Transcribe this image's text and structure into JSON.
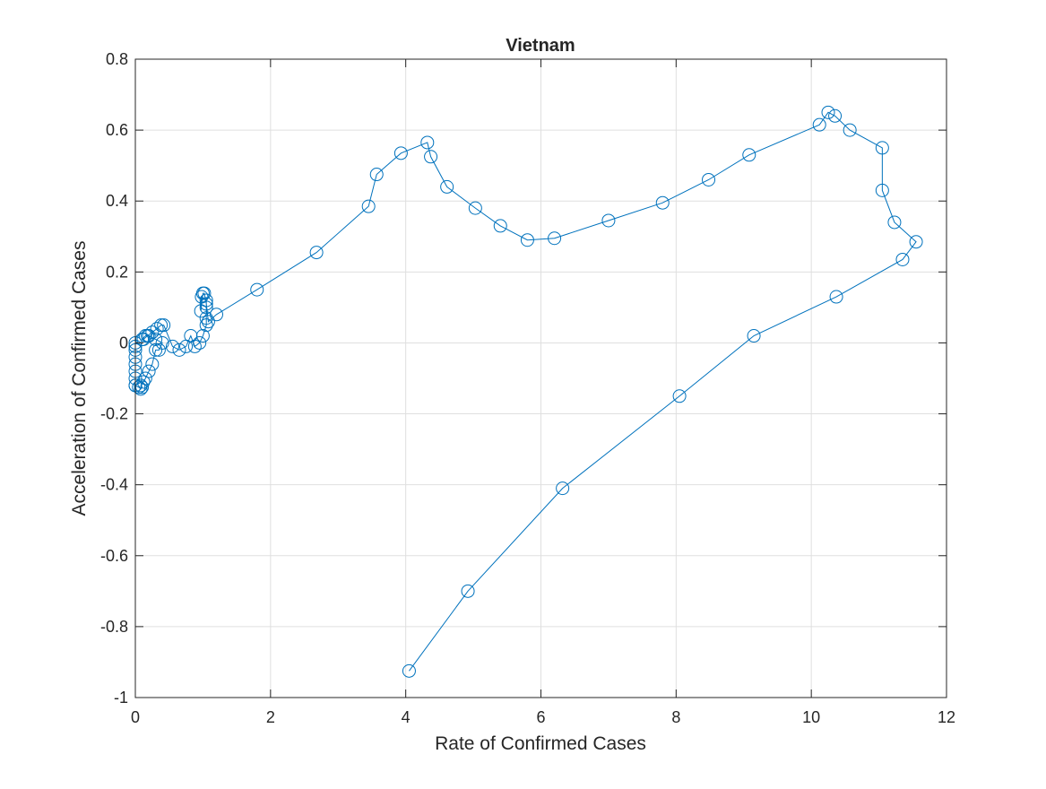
{
  "chart_data": {
    "type": "line",
    "title": "Vietnam",
    "xlabel": "Rate of Confirmed Cases",
    "ylabel": "Acceleration of Confirmed Cases",
    "xlim": [
      0,
      12
    ],
    "ylim": [
      -1,
      0.8
    ],
    "xticks": [
      0,
      2,
      4,
      6,
      8,
      10,
      12
    ],
    "yticks": [
      -1,
      -0.8,
      -0.6,
      -0.4,
      -0.2,
      0,
      0.2,
      0.4,
      0.6,
      0.8
    ],
    "xtick_labels": [
      "0",
      "2",
      "4",
      "6",
      "8",
      "10",
      "12"
    ],
    "ytick_labels": [
      "-1",
      "-0.8",
      "-0.6",
      "-0.4",
      "-0.2",
      "0",
      "0.2",
      "0.4",
      "0.6",
      "0.8"
    ],
    "grid": true,
    "marker": "circle",
    "series_color": "#0072bd",
    "series": [
      {
        "x": [
          0.0,
          0.0,
          0.0,
          0.0,
          0.0,
          0.0,
          0.0,
          0.0,
          0.0,
          0.05,
          0.08,
          0.1,
          0.08,
          0.12,
          0.15,
          0.2,
          0.25,
          0.3,
          0.35,
          0.4,
          0.3,
          0.2,
          0.15,
          0.1,
          0.12,
          0.18,
          0.25,
          0.32,
          0.38,
          0.42,
          0.55,
          0.65,
          0.75,
          0.82,
          0.88,
          0.95,
          1.0,
          1.05,
          1.05,
          1.05,
          1.05,
          0.98,
          0.97,
          1.0,
          1.02,
          1.05,
          1.08,
          1.2,
          1.8,
          2.68,
          3.45,
          3.57,
          3.93,
          4.32,
          4.37,
          4.61,
          5.03,
          5.4,
          5.8,
          6.2,
          7.0,
          7.8,
          8.48,
          9.08,
          10.12,
          10.25,
          10.35,
          10.57,
          11.05,
          11.05,
          11.23,
          11.55,
          11.35,
          10.37,
          9.15,
          8.05,
          6.32,
          4.92,
          4.05
        ],
        "y": [
          0.0,
          -0.01,
          -0.02,
          -0.04,
          -0.06,
          -0.08,
          -0.1,
          -0.12,
          -0.12,
          -0.125,
          -0.13,
          -0.125,
          -0.12,
          -0.11,
          -0.1,
          -0.08,
          -0.06,
          -0.02,
          -0.02,
          0.0,
          0.01,
          0.02,
          0.02,
          0.01,
          0.01,
          0.02,
          0.03,
          0.04,
          0.05,
          0.05,
          -0.01,
          -0.02,
          -0.01,
          0.02,
          -0.01,
          0.0,
          0.02,
          0.05,
          0.07,
          0.1,
          0.12,
          0.13,
          0.09,
          0.14,
          0.14,
          0.11,
          0.06,
          0.08,
          0.15,
          0.255,
          0.385,
          0.475,
          0.535,
          0.565,
          0.525,
          0.44,
          0.38,
          0.33,
          0.29,
          0.295,
          0.345,
          0.395,
          0.46,
          0.53,
          0.615,
          0.65,
          0.64,
          0.6,
          0.55,
          0.43,
          0.34,
          0.285,
          0.235,
          0.13,
          0.02,
          -0.15,
          -0.41,
          -0.7,
          -0.925
        ]
      }
    ]
  }
}
